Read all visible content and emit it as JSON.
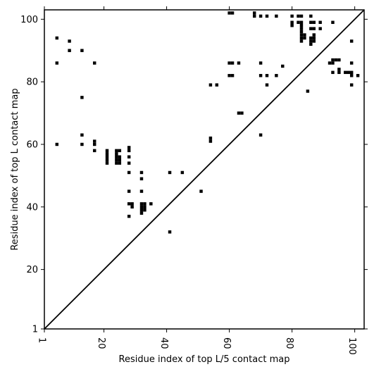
{
  "chart_data": {
    "type": "scatter",
    "title": "",
    "xlabel": "Residue index of top L/5 contact map",
    "ylabel": "Residue index of top L contact map",
    "xlim": [
      1,
      103
    ],
    "ylim": [
      1,
      103
    ],
    "xticks": [
      1,
      20,
      40,
      60,
      80,
      100
    ],
    "yticks": [
      1,
      20,
      40,
      60,
      80,
      100
    ],
    "grid": false,
    "diagonal_line": true,
    "marker_color": "#000000",
    "points": [
      [
        5,
        94
      ],
      [
        5,
        86
      ],
      [
        9,
        93
      ],
      [
        9,
        90
      ],
      [
        13,
        90
      ],
      [
        13,
        75
      ],
      [
        13,
        63
      ],
      [
        13,
        60
      ],
      [
        5,
        60
      ],
      [
        17,
        86
      ],
      [
        17,
        61
      ],
      [
        17,
        60
      ],
      [
        17,
        58
      ],
      [
        21,
        58
      ],
      [
        21,
        57
      ],
      [
        21,
        56
      ],
      [
        21,
        55
      ],
      [
        21,
        54
      ],
      [
        24,
        58
      ],
      [
        24,
        57
      ],
      [
        24,
        56
      ],
      [
        24,
        55
      ],
      [
        24,
        54
      ],
      [
        25,
        58
      ],
      [
        25,
        56
      ],
      [
        25,
        55
      ],
      [
        25,
        54
      ],
      [
        28,
        59
      ],
      [
        28,
        58
      ],
      [
        28,
        56
      ],
      [
        28,
        54
      ],
      [
        28,
        51
      ],
      [
        28,
        45
      ],
      [
        28,
        41
      ],
      [
        28,
        37
      ],
      [
        29,
        41
      ],
      [
        29,
        40
      ],
      [
        32,
        51
      ],
      [
        32,
        49
      ],
      [
        32,
        45
      ],
      [
        32,
        41
      ],
      [
        32,
        40
      ],
      [
        32,
        39
      ],
      [
        32,
        38
      ],
      [
        33,
        41
      ],
      [
        33,
        40
      ],
      [
        33,
        39
      ],
      [
        35,
        41
      ],
      [
        41,
        51
      ],
      [
        41,
        32
      ],
      [
        45,
        51
      ],
      [
        51,
        45
      ],
      [
        54,
        79
      ],
      [
        54,
        62
      ],
      [
        54,
        61
      ],
      [
        56,
        79
      ],
      [
        60,
        102
      ],
      [
        60,
        86
      ],
      [
        60,
        82
      ],
      [
        61,
        102
      ],
      [
        61,
        86
      ],
      [
        61,
        82
      ],
      [
        63,
        86
      ],
      [
        63,
        70
      ],
      [
        64,
        70
      ],
      [
        68,
        102
      ],
      [
        68,
        101
      ],
      [
        70,
        101
      ],
      [
        70,
        86
      ],
      [
        70,
        82
      ],
      [
        70,
        63
      ],
      [
        72,
        101
      ],
      [
        72,
        82
      ],
      [
        72,
        79
      ],
      [
        75,
        101
      ],
      [
        75,
        82
      ],
      [
        77,
        85
      ],
      [
        80,
        101
      ],
      [
        80,
        99
      ],
      [
        80,
        98
      ],
      [
        82,
        101
      ],
      [
        82,
        99
      ],
      [
        83,
        101
      ],
      [
        83,
        99
      ],
      [
        83,
        98
      ],
      [
        83,
        97
      ],
      [
        83,
        96
      ],
      [
        83,
        95
      ],
      [
        83,
        94
      ],
      [
        83,
        93
      ],
      [
        84,
        95
      ],
      [
        84,
        94
      ],
      [
        85,
        77
      ],
      [
        86,
        101
      ],
      [
        86,
        99
      ],
      [
        86,
        97
      ],
      [
        86,
        94
      ],
      [
        86,
        93
      ],
      [
        86,
        92
      ],
      [
        87,
        99
      ],
      [
        87,
        97
      ],
      [
        87,
        95
      ],
      [
        87,
        94
      ],
      [
        87,
        93
      ],
      [
        89,
        99
      ],
      [
        89,
        97
      ],
      [
        92,
        86
      ],
      [
        93,
        99
      ],
      [
        93,
        87
      ],
      [
        93,
        86
      ],
      [
        93,
        83
      ],
      [
        94,
        87
      ],
      [
        95,
        87
      ],
      [
        95,
        84
      ],
      [
        95,
        83
      ],
      [
        97,
        83
      ],
      [
        98,
        83
      ],
      [
        99,
        93
      ],
      [
        99,
        86
      ],
      [
        99,
        83
      ],
      [
        99,
        82
      ],
      [
        99,
        79
      ],
      [
        101,
        82
      ]
    ]
  }
}
